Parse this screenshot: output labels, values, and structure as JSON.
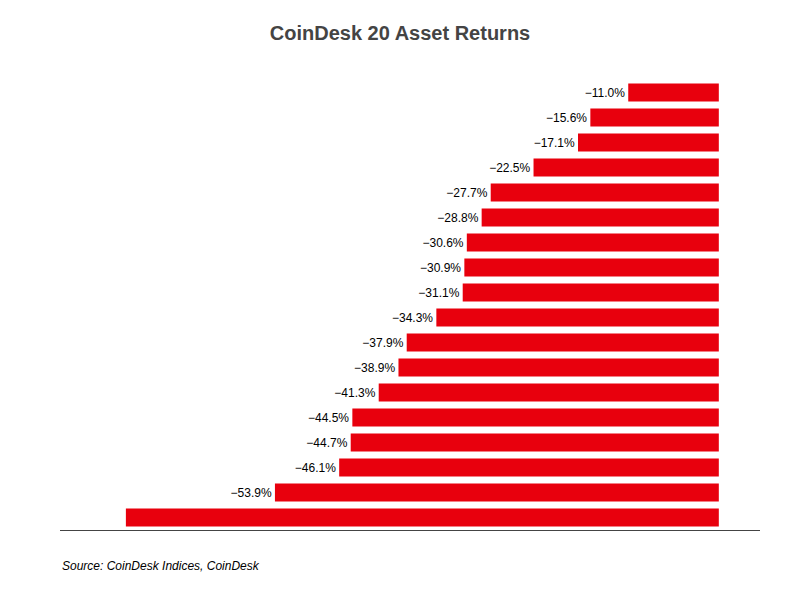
{
  "chart_data": {
    "type": "bar",
    "title": "CoinDesk 20 Asset Returns",
    "orientation": "horizontal",
    "categories": [
      null,
      null,
      null,
      null,
      null,
      null,
      null,
      null,
      null,
      null,
      null,
      null,
      null,
      null,
      null,
      null,
      null,
      null
    ],
    "values": [
      -11.0,
      -15.6,
      -17.1,
      -22.5,
      -27.7,
      -28.8,
      -30.6,
      -30.9,
      -31.1,
      -34.3,
      -37.9,
      -38.9,
      -41.3,
      -44.5,
      -44.7,
      -46.1,
      -53.9,
      -72.0
    ],
    "value_labels": [
      "−11.0%",
      "−15.6%",
      "−17.1%",
      "−22.5%",
      "−27.7%",
      "−28.8%",
      "−30.6%",
      "−30.9%",
      "−31.1%",
      "−34.3%",
      "−37.9%",
      "−38.9%",
      "−41.3%",
      "−44.5%",
      "−44.7%",
      "−46.1%",
      "−53.9%",
      null
    ],
    "data_labels": true,
    "color": "#e8000d",
    "xlim": [
      -80,
      5
    ],
    "tick_labels": false,
    "grid": false,
    "annotations": [
      "Source: CoinDesk Indices, CoinDesk"
    ]
  }
}
